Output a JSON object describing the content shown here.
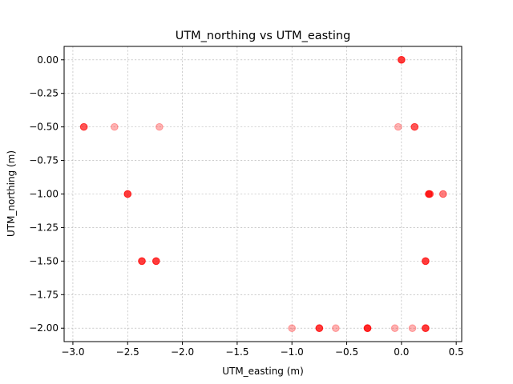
{
  "chart_data": {
    "type": "scatter",
    "title": "UTM_northing vs UTM_easting",
    "xlabel": "UTM_easting (m)",
    "ylabel": "UTM_northing (m)",
    "xlim": [
      -3.08,
      0.55
    ],
    "ylim": [
      -2.1,
      0.1
    ],
    "xticks": [
      -3.0,
      -2.5,
      -2.0,
      -1.5,
      -1.0,
      -0.5,
      0.0,
      0.5
    ],
    "xtick_labels": [
      "−3.0",
      "−2.5",
      "−2.0",
      "−1.5",
      "−1.0",
      "−0.5",
      "0.0",
      "0.5"
    ],
    "yticks": [
      0.0,
      -0.25,
      -0.5,
      -0.75,
      -1.0,
      -1.25,
      -1.5,
      -1.75,
      -2.0
    ],
    "ytick_labels": [
      "0.00",
      "−0.25",
      "−0.50",
      "−0.75",
      "−1.00",
      "−1.25",
      "−1.50",
      "−1.75",
      "−2.00"
    ],
    "grid": true,
    "marker_color": "#ff0000",
    "marker_alpha": 0.3,
    "series": [
      {
        "points": [
          {
            "x": 0.0,
            "y": 0.0
          },
          {
            "x": 0.0,
            "y": 0.0
          },
          {
            "x": 0.0,
            "y": 0.0
          },
          {
            "x": 0.0,
            "y": 0.0
          },
          {
            "x": -2.9,
            "y": -0.5
          },
          {
            "x": -2.9,
            "y": -0.5
          },
          {
            "x": -2.9,
            "y": -0.5
          },
          {
            "x": -2.62,
            "y": -0.5
          },
          {
            "x": -2.21,
            "y": -0.5
          },
          {
            "x": -0.03,
            "y": -0.5
          },
          {
            "x": 0.12,
            "y": -0.5
          },
          {
            "x": 0.12,
            "y": -0.5
          },
          {
            "x": 0.12,
            "y": -0.5
          },
          {
            "x": -2.5,
            "y": -1.0
          },
          {
            "x": -2.5,
            "y": -1.0
          },
          {
            "x": -2.5,
            "y": -1.0
          },
          {
            "x": -2.5,
            "y": -1.0
          },
          {
            "x": 0.25,
            "y": -1.0
          },
          {
            "x": 0.25,
            "y": -1.0
          },
          {
            "x": 0.25,
            "y": -1.0
          },
          {
            "x": 0.25,
            "y": -1.0
          },
          {
            "x": 0.26,
            "y": -1.0
          },
          {
            "x": 0.26,
            "y": -1.0
          },
          {
            "x": 0.38,
            "y": -1.0
          },
          {
            "x": 0.38,
            "y": -1.0
          },
          {
            "x": -2.37,
            "y": -1.5
          },
          {
            "x": -2.37,
            "y": -1.5
          },
          {
            "x": -2.37,
            "y": -1.5
          },
          {
            "x": -2.37,
            "y": -1.5
          },
          {
            "x": -2.24,
            "y": -1.5
          },
          {
            "x": -2.24,
            "y": -1.5
          },
          {
            "x": -2.24,
            "y": -1.5
          },
          {
            "x": -2.24,
            "y": -1.5
          },
          {
            "x": 0.22,
            "y": -1.5
          },
          {
            "x": 0.22,
            "y": -1.5
          },
          {
            "x": 0.22,
            "y": -1.5
          },
          {
            "x": 0.22,
            "y": -1.5
          },
          {
            "x": -1.0,
            "y": -2.0
          },
          {
            "x": -0.75,
            "y": -2.0
          },
          {
            "x": -0.75,
            "y": -2.0
          },
          {
            "x": -0.75,
            "y": -2.0
          },
          {
            "x": -0.75,
            "y": -2.0
          },
          {
            "x": -0.6,
            "y": -2.0
          },
          {
            "x": -0.31,
            "y": -2.0
          },
          {
            "x": -0.31,
            "y": -2.0
          },
          {
            "x": -0.31,
            "y": -2.0
          },
          {
            "x": -0.31,
            "y": -2.0
          },
          {
            "x": -0.31,
            "y": -2.0
          },
          {
            "x": -0.06,
            "y": -2.0
          },
          {
            "x": 0.1,
            "y": -2.0
          },
          {
            "x": 0.22,
            "y": -2.0
          },
          {
            "x": 0.22,
            "y": -2.0
          },
          {
            "x": 0.22,
            "y": -2.0
          },
          {
            "x": 0.22,
            "y": -2.0
          }
        ]
      }
    ]
  }
}
